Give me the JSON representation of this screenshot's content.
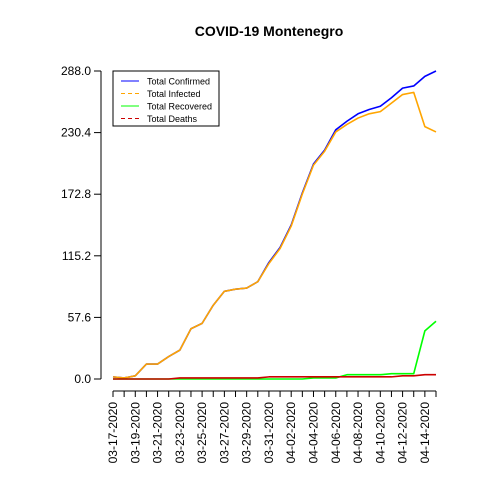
{
  "chart_data": {
    "type": "line",
    "title": "COVID-19 Montenegro",
    "xlabel": "",
    "ylabel": "",
    "x": [
      "03-17-2020",
      "03-18-2020",
      "03-19-2020",
      "03-20-2020",
      "03-21-2020",
      "03-22-2020",
      "03-23-2020",
      "03-24-2020",
      "03-25-2020",
      "03-26-2020",
      "03-27-2020",
      "03-28-2020",
      "03-29-2020",
      "03-30-2020",
      "03-31-2020",
      "04-01-2020",
      "04-02-2020",
      "04-03-2020",
      "04-04-2020",
      "04-05-2020",
      "04-06-2020",
      "04-07-2020",
      "04-08-2020",
      "04-09-2020",
      "04-10-2020",
      "04-11-2020",
      "04-12-2020",
      "04-13-2020",
      "04-14-2020",
      "04-15-2020"
    ],
    "x_tick_labels": [
      "03-17-2020",
      "03-19-2020",
      "03-21-2020",
      "03-23-2020",
      "03-25-2020",
      "03-27-2020",
      "03-29-2020",
      "03-31-2020",
      "04-02-2020",
      "04-04-2020",
      "04-06-2020",
      "04-08-2020",
      "04-10-2020",
      "04-12-2020",
      "04-14-2020"
    ],
    "y_ticks": [
      "0.0",
      "57.6",
      "115.2",
      "172.8",
      "230.4",
      "288.0"
    ],
    "ylim": [
      0,
      288
    ],
    "grid": false,
    "legend_position": "top-left",
    "series": [
      {
        "name": "Total Confirmed",
        "color": "#0000ff",
        "values": [
          2,
          1,
          3,
          14,
          14,
          21,
          27,
          47,
          52,
          69,
          82,
          84,
          85,
          91,
          109,
          123,
          144,
          174,
          201,
          214,
          233,
          241,
          248,
          252,
          255,
          263,
          272,
          274,
          283,
          288
        ]
      },
      {
        "name": "Total Infected",
        "color": "#ffa500",
        "values": [
          2,
          1,
          3,
          14,
          14,
          21,
          27,
          47,
          52,
          69,
          82,
          84,
          85,
          91,
          108,
          122,
          143,
          173,
          200,
          213,
          231,
          238,
          244,
          248,
          250,
          258,
          266,
          268,
          236,
          231
        ]
      },
      {
        "name": "Total Recovered",
        "color": "#00ff00",
        "values": [
          0,
          0,
          0,
          0,
          0,
          0,
          0,
          0,
          0,
          0,
          0,
          0,
          0,
          0,
          0,
          0,
          0,
          0,
          1,
          1,
          1,
          4,
          4,
          4,
          4,
          5,
          5,
          5,
          45,
          54
        ]
      },
      {
        "name": "Total Deaths",
        "color": "#cc0000",
        "values": [
          0,
          0,
          0,
          0,
          0,
          0,
          1,
          1,
          1,
          1,
          1,
          1,
          1,
          1,
          2,
          2,
          2,
          2,
          2,
          2,
          2,
          2,
          2,
          2,
          2,
          2,
          3,
          3,
          4,
          4
        ]
      }
    ]
  }
}
